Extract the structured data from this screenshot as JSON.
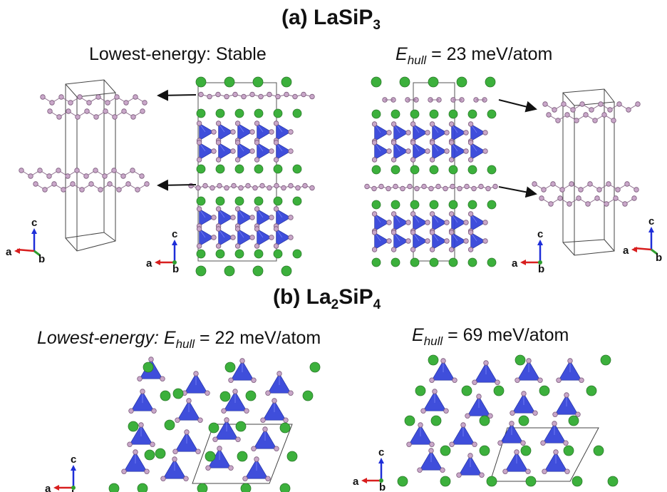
{
  "panel_a": {
    "title_prefix": "(a) LaSiP",
    "title_sub": "3",
    "left_label": "Lowest-energy: Stable",
    "right_label_sym": "E",
    "right_label_sub": "hull",
    "right_label_value": " = 23 meV/atom"
  },
  "panel_b": {
    "title_prefix": "(b) La",
    "title_sub1": "2",
    "title_mid": "SiP",
    "title_sub2": "4",
    "left_label_prefix": "Lowest-energy: ",
    "left_label_sym": "E",
    "left_label_sub": "hull",
    "left_label_value": " = 22 meV/atom",
    "right_label_sym": "E",
    "right_label_sub": "hull",
    "right_label_value": " = 69 meV/atom"
  },
  "axes": {
    "a": "a",
    "b": "b",
    "c": "c"
  },
  "colors": {
    "la_atom": "#3cb03c",
    "p_atom": "#c9a7c9",
    "si_tetrahedron": "#2f3fd8",
    "axis_a": "#d81e1e",
    "axis_b": "#2e9e2e",
    "axis_c": "#1e2ed8"
  }
}
